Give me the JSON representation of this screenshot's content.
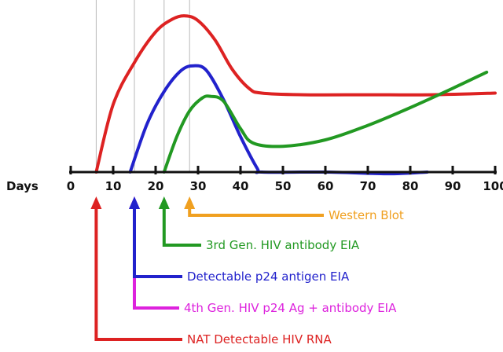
{
  "chart_data": {
    "type": "line",
    "xlabel": "Days",
    "ylabel": "",
    "xlim": [
      0,
      100
    ],
    "x_ticks": [
      0,
      10,
      20,
      30,
      40,
      50,
      60,
      70,
      80,
      90,
      100
    ],
    "y_scale": "relative level (unlabeled)",
    "ylim": [
      0,
      1
    ],
    "grid": "vertical reference lines at marker days",
    "series": [
      {
        "color": "#dd2222",
        "points": [
          [
            6,
            0.0
          ],
          [
            10,
            0.42
          ],
          [
            15,
            0.68
          ],
          [
            20,
            0.87
          ],
          [
            24,
            0.95
          ],
          [
            27,
            0.97
          ],
          [
            30,
            0.94
          ],
          [
            34,
            0.82
          ],
          [
            38,
            0.64
          ],
          [
            42,
            0.52
          ],
          [
            45,
            0.49
          ],
          [
            55,
            0.48
          ],
          [
            70,
            0.48
          ],
          [
            85,
            0.48
          ],
          [
            100,
            0.49
          ]
        ]
      },
      {
        "color": "#2222cc",
        "points": [
          [
            14,
            0.0
          ],
          [
            18,
            0.3
          ],
          [
            22,
            0.5
          ],
          [
            26,
            0.63
          ],
          [
            29,
            0.66
          ],
          [
            32,
            0.63
          ],
          [
            36,
            0.45
          ],
          [
            40,
            0.22
          ],
          [
            44,
            0.02
          ],
          [
            45,
            0.0
          ],
          [
            60,
            0.0
          ],
          [
            75,
            -0.01
          ],
          [
            84,
            0.0
          ]
        ]
      },
      {
        "color": "#229922",
        "points": [
          [
            22,
            0.0
          ],
          [
            25,
            0.22
          ],
          [
            28,
            0.38
          ],
          [
            31,
            0.46
          ],
          [
            33,
            0.47
          ],
          [
            36,
            0.44
          ],
          [
            40,
            0.27
          ],
          [
            43,
            0.18
          ],
          [
            50,
            0.16
          ],
          [
            60,
            0.2
          ],
          [
            70,
            0.29
          ],
          [
            80,
            0.4
          ],
          [
            90,
            0.52
          ],
          [
            98,
            0.62
          ]
        ]
      }
    ],
    "annotations": [
      {
        "label": "NAT Detectable HIV RNA",
        "day": 6,
        "color": "#dd2222"
      },
      {
        "label": "4th Gen. HIV p24 Ag + antibody EIA",
        "day": 15,
        "color": "#dd22dd"
      },
      {
        "label": "Detectable p24 antigen EIA",
        "day": 15,
        "color": "#2222cc"
      },
      {
        "label": "3rd Gen. HIV antibody EIA",
        "day": 22,
        "color": "#229922"
      },
      {
        "label": "Western Blot",
        "day": 28,
        "color": "#f0a020"
      }
    ]
  }
}
